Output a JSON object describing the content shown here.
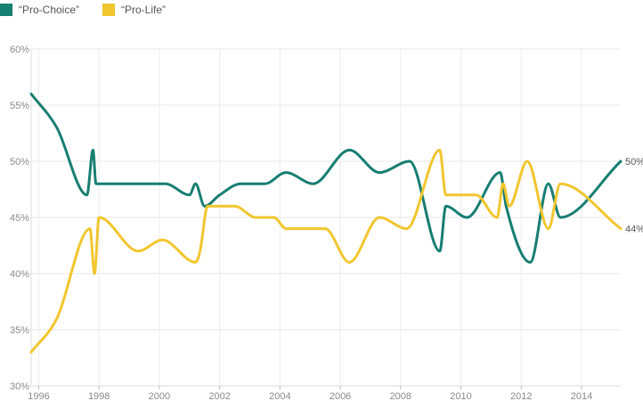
{
  "chart_data": {
    "type": "line",
    "title": "",
    "xlabel": "",
    "ylabel": "",
    "xlim": [
      1995.75,
      2015.3
    ],
    "ylim": [
      30,
      60
    ],
    "y_ticks": [
      30,
      35,
      40,
      45,
      50,
      55,
      60
    ],
    "y_tick_labels": [
      "30%",
      "35%",
      "40%",
      "45%",
      "50%",
      "55%",
      "60%"
    ],
    "x_ticks": [
      1996,
      1998,
      2000,
      2002,
      2004,
      2006,
      2008,
      2010,
      2012,
      2014
    ],
    "x_tick_labels": [
      "1996",
      "1998",
      "2000",
      "2002",
      "2004",
      "2006",
      "2008",
      "2010",
      "2012",
      "2014"
    ],
    "grid": true,
    "legend_position": "top-left",
    "series": [
      {
        "name": "“Pro-Choice”",
        "color": "#177e72",
        "end_label": "50%",
        "points": [
          [
            1995.75,
            56
          ],
          [
            1996.6,
            53
          ],
          [
            1997.6,
            47
          ],
          [
            1997.8,
            51
          ],
          [
            1997.9,
            48
          ],
          [
            1998.6,
            48
          ],
          [
            2000.2,
            48
          ],
          [
            2001.0,
            47
          ],
          [
            2001.2,
            48
          ],
          [
            2001.5,
            46
          ],
          [
            2002.0,
            47
          ],
          [
            2002.7,
            48
          ],
          [
            2003.5,
            48
          ],
          [
            2004.2,
            49
          ],
          [
            2005.1,
            48
          ],
          [
            2006.3,
            51
          ],
          [
            2007.3,
            49
          ],
          [
            2008.3,
            50
          ],
          [
            2009.3,
            42
          ],
          [
            2009.5,
            46
          ],
          [
            2010.2,
            45
          ],
          [
            2011.3,
            49
          ],
          [
            2011.5,
            46
          ],
          [
            2012.3,
            41
          ],
          [
            2012.9,
            48
          ],
          [
            2013.3,
            45
          ],
          [
            2015.3,
            50
          ]
        ]
      },
      {
        "name": "“Pro-Life”",
        "color": "#f1c62f",
        "end_label": "44%",
        "points": [
          [
            1995.75,
            33
          ],
          [
            1996.6,
            36
          ],
          [
            1997.7,
            44
          ],
          [
            1997.85,
            40
          ],
          [
            1998.0,
            45
          ],
          [
            1999.3,
            42
          ],
          [
            2000.1,
            43
          ],
          [
            2001.2,
            41
          ],
          [
            2001.35,
            42
          ],
          [
            2001.6,
            46
          ],
          [
            2002.5,
            46
          ],
          [
            2003.2,
            45
          ],
          [
            2003.8,
            45
          ],
          [
            2004.2,
            44
          ],
          [
            2005.5,
            44
          ],
          [
            2006.3,
            41
          ],
          [
            2007.3,
            45
          ],
          [
            2008.2,
            44
          ],
          [
            2009.3,
            51
          ],
          [
            2009.5,
            47
          ],
          [
            2010.5,
            47
          ],
          [
            2011.2,
            45
          ],
          [
            2011.4,
            48
          ],
          [
            2011.6,
            46
          ],
          [
            2012.2,
            50
          ],
          [
            2012.9,
            44
          ],
          [
            2013.3,
            48
          ],
          [
            2015.3,
            44
          ]
        ]
      }
    ]
  }
}
